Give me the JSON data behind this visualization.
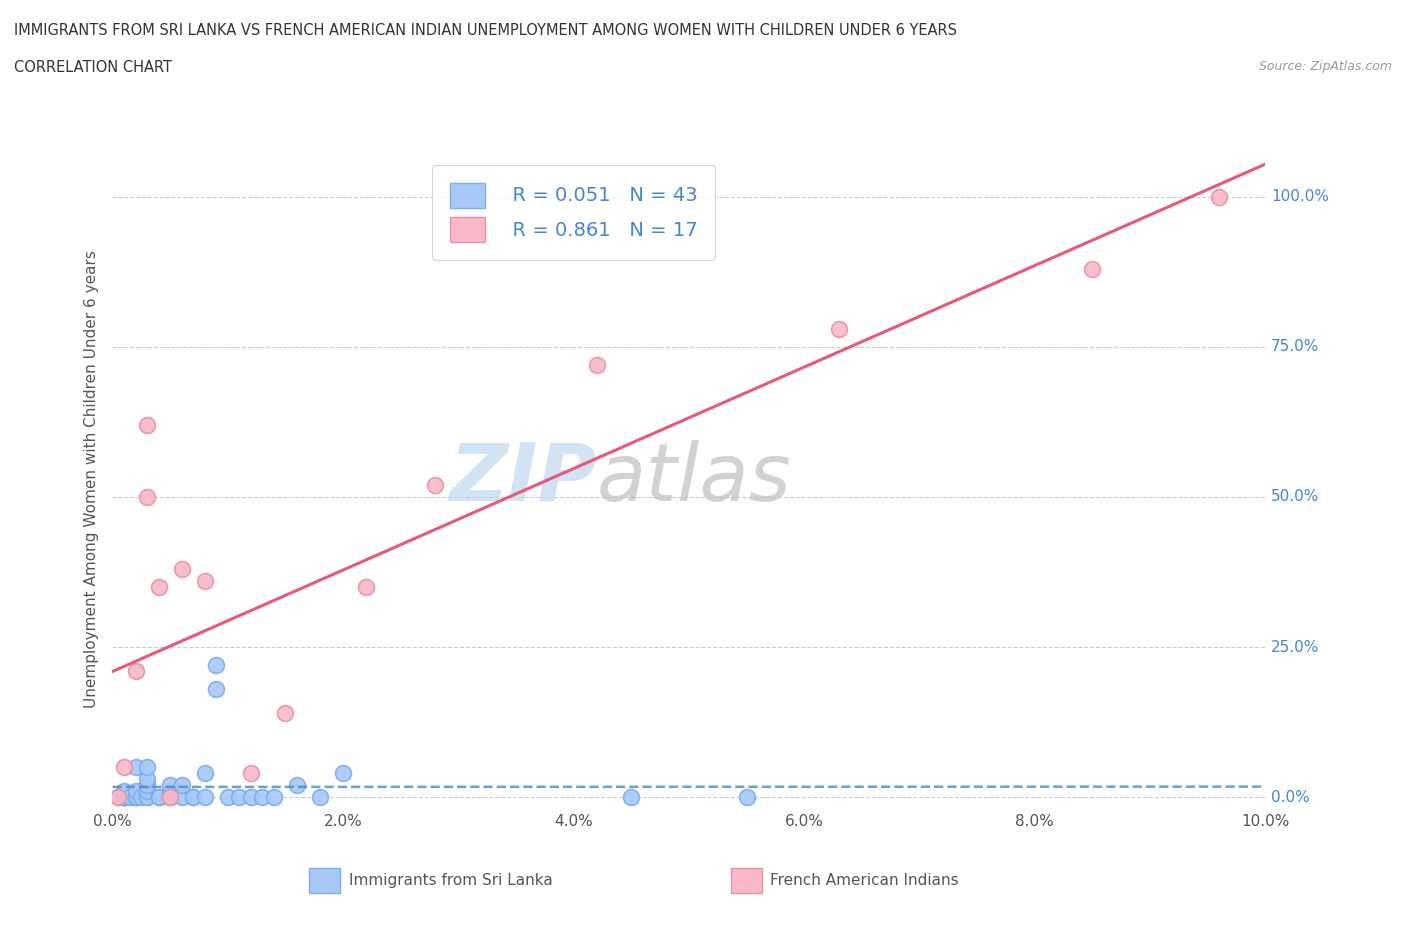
{
  "title_line1": "IMMIGRANTS FROM SRI LANKA VS FRENCH AMERICAN INDIAN UNEMPLOYMENT AMONG WOMEN WITH CHILDREN UNDER 6 YEARS",
  "title_line2": "CORRELATION CHART",
  "source_text": "Source: ZipAtlas.com",
  "ylabel": "Unemployment Among Women with Children Under 6 years",
  "xlim": [
    0.0,
    0.1
  ],
  "ylim": [
    -0.02,
    1.08
  ],
  "xticks": [
    0.0,
    0.02,
    0.04,
    0.06,
    0.08,
    0.1
  ],
  "xticklabels": [
    "0.0%",
    "2.0%",
    "4.0%",
    "6.0%",
    "8.0%",
    "10.0%"
  ],
  "yticks": [
    0.0,
    0.25,
    0.5,
    0.75,
    1.0
  ],
  "yticklabels": [
    "0.0%",
    "25.0%",
    "50.0%",
    "75.0%",
    "100.0%"
  ],
  "blue_color": "#a8c8f8",
  "blue_edge_color": "#7aaee8",
  "pink_color": "#f8b8c8",
  "pink_edge_color": "#e890a8",
  "blue_line_color": "#4488cc",
  "pink_line_color": "#e85878",
  "legend_r1": "R = 0.051",
  "legend_n1": "N = 43",
  "legend_r2": "R = 0.861",
  "legend_n2": "N = 17",
  "legend_label1": "Immigrants from Sri Lanka",
  "legend_label2": "French American Indians",
  "watermark_zip": "ZIP",
  "watermark_atlas": "atlas",
  "watermark_color_zip": "#c0d8f0",
  "watermark_color_atlas": "#c0c0c0",
  "blue_x": [
    0.0005,
    0.001,
    0.001,
    0.001,
    0.001,
    0.001,
    0.0015,
    0.002,
    0.002,
    0.002,
    0.002,
    0.002,
    0.0025,
    0.003,
    0.003,
    0.003,
    0.003,
    0.003,
    0.003,
    0.004,
    0.004,
    0.004,
    0.005,
    0.005,
    0.005,
    0.006,
    0.006,
    0.007,
    0.007,
    0.008,
    0.008,
    0.009,
    0.009,
    0.01,
    0.011,
    0.012,
    0.013,
    0.014,
    0.016,
    0.018,
    0.02,
    0.045,
    0.055
  ],
  "blue_y": [
    0.0,
    0.0,
    0.0,
    0.0,
    0.0,
    0.01,
    0.0,
    0.0,
    0.0,
    0.0,
    0.01,
    0.05,
    0.0,
    0.0,
    0.0,
    0.01,
    0.02,
    0.03,
    0.05,
    0.0,
    0.0,
    0.0,
    0.0,
    0.01,
    0.02,
    0.0,
    0.02,
    0.0,
    0.0,
    0.0,
    0.04,
    0.18,
    0.22,
    0.0,
    0.0,
    0.0,
    0.0,
    0.0,
    0.02,
    0.0,
    0.04,
    0.0,
    0.0
  ],
  "pink_x": [
    0.0005,
    0.001,
    0.002,
    0.003,
    0.003,
    0.004,
    0.005,
    0.006,
    0.008,
    0.012,
    0.015,
    0.022,
    0.028,
    0.042,
    0.063,
    0.085,
    0.096
  ],
  "pink_y": [
    0.0,
    0.05,
    0.21,
    0.5,
    0.62,
    0.35,
    0.0,
    0.38,
    0.36,
    0.04,
    0.14,
    0.35,
    0.52,
    0.72,
    0.78,
    0.88,
    1.0
  ]
}
